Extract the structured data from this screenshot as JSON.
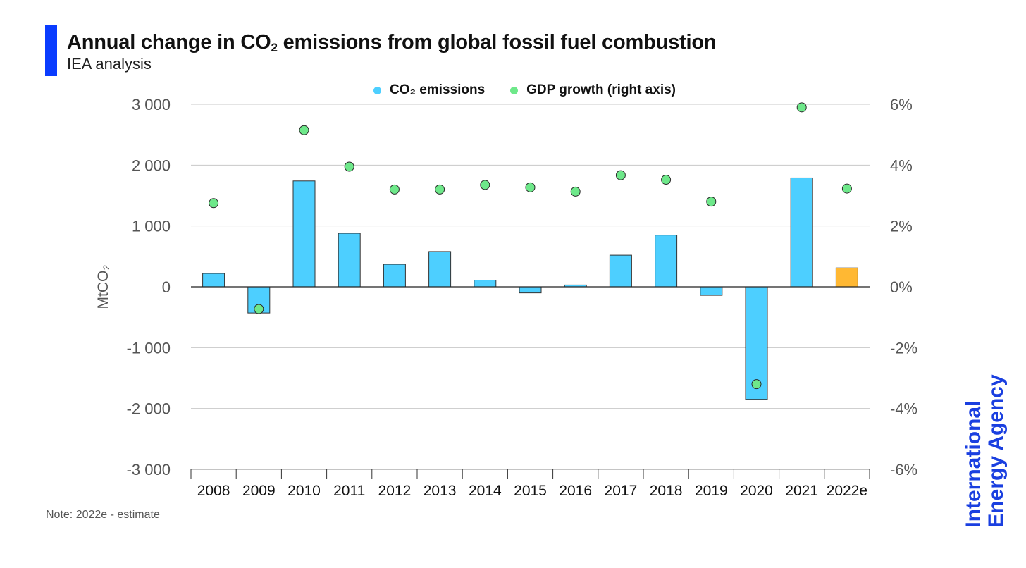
{
  "header": {
    "title_pre": "Annual change in CO",
    "title_sub": "2",
    "title_post": " emissions from global fossil fuel combustion",
    "subtitle": "IEA analysis",
    "accent_color": "#0a3cff"
  },
  "legend": {
    "co2_label": "CO₂ emissions",
    "gdp_label": "GDP growth (right axis)"
  },
  "note": "Note: 2022e - estimate",
  "logo": {
    "line1": "International",
    "line2": "Energy Agency",
    "color": "#1a3fe0"
  },
  "chart_data": {
    "type": "bar",
    "categories": [
      "2008",
      "2009",
      "2010",
      "2011",
      "2012",
      "2013",
      "2014",
      "2015",
      "2016",
      "2017",
      "2018",
      "2019",
      "2020",
      "2021",
      "2022e"
    ],
    "series": [
      {
        "name": "CO₂ emissions",
        "type": "bar",
        "axis": "left",
        "color": "#4dcfff",
        "highlight_color": "#ffb833",
        "highlight_category": "2022e",
        "values": [
          220,
          -430,
          1740,
          880,
          370,
          580,
          110,
          -100,
          30,
          520,
          850,
          -140,
          -1850,
          1790,
          310
        ]
      },
      {
        "name": "GDP growth (right axis)",
        "type": "scatter",
        "axis": "right",
        "color": "#6ee88a",
        "values": [
          2.75,
          -0.73,
          5.15,
          3.95,
          3.2,
          3.2,
          3.35,
          3.27,
          3.13,
          3.67,
          3.52,
          2.8,
          -3.2,
          5.9,
          3.23
        ]
      }
    ],
    "ylabel": "MtCO₂",
    "ylim": [
      -3000,
      3000
    ],
    "yticks": [
      3000,
      2000,
      1000,
      0,
      -1000,
      -2000,
      -3000
    ],
    "ytick_labels": [
      "3 000",
      "2 000",
      "1 000",
      "0",
      "-1 000",
      "-2 000",
      "-3 000"
    ],
    "y2lim": [
      -6,
      6
    ],
    "y2ticks": [
      6,
      4,
      2,
      0,
      -2,
      -4,
      -6
    ],
    "y2tick_labels": [
      "6%",
      "4%",
      "2%",
      "0%",
      "-2%",
      "-4%",
      "-6%"
    ],
    "grid": true,
    "legend_position": "top-center"
  }
}
